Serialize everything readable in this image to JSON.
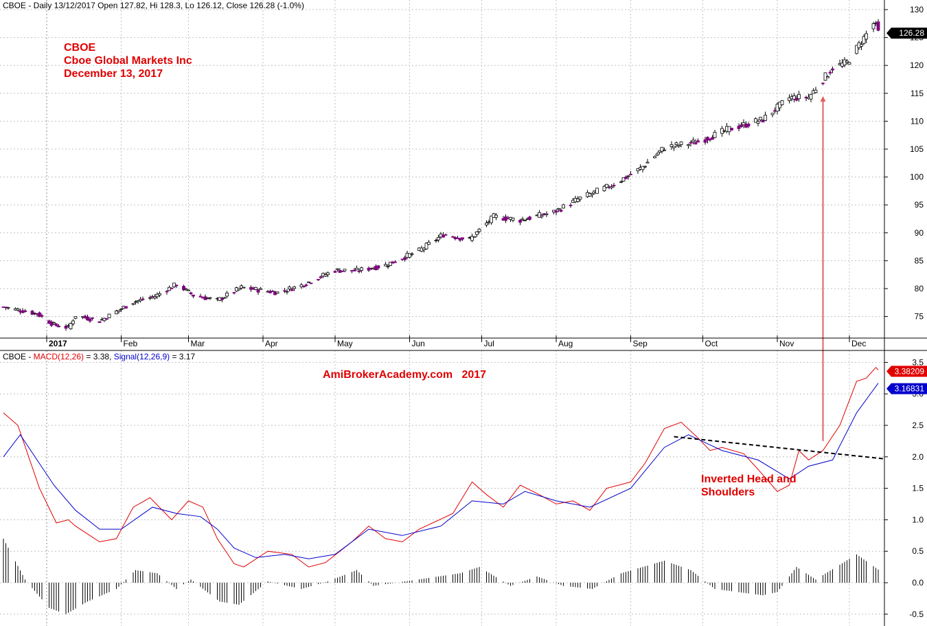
{
  "price_panel": {
    "header": "CBOE - Daily 13/12/2017 Open 127.82, Hi 128.3, Lo 126.12, Close 126.28 (-1.0%)",
    "annotation": {
      "line1": "CBOE",
      "line2": "Cboe Global Markets Inc",
      "line3": "December 13, 2017"
    },
    "last_price_badge": "126.28"
  },
  "macd_panel": {
    "header_prefix": "CBOE - ",
    "macd_label": "MACD(12,26)",
    "macd_eq": " = 3.38, ",
    "signal_label": "Signal(12,26,9)",
    "signal_eq": " = 3.17",
    "watermark": "AmiBrokerAcademy.com   2017",
    "pattern_label_1": "Inverted Head and",
    "pattern_label_2": "Shoulders",
    "macd_badge": "3.38209",
    "signal_badge": "3.16831"
  },
  "colors": {
    "up_candle": "#ffffff",
    "down_candle": "#800080",
    "macd_line": "#e00000",
    "signal_line": "#0000cc",
    "histogram": "#000000",
    "annotation_text": "#e00000",
    "arrow": "#e06060",
    "grid": "#c0c0c0",
    "badge_price": "#000000",
    "badge_macd": "#e00000",
    "badge_signal": "#0000cc"
  },
  "chart_data": [
    {
      "type": "candlestick",
      "title": "CBOE - Daily 13/12/2017 Open 127.82, Hi 128.3, Lo 126.12, Close 126.28 (-1.0%)",
      "x_tick_labels": [
        "2017",
        "Feb",
        "Mar",
        "Apr",
        "May",
        "Jun",
        "Jul",
        "Aug",
        "Sep",
        "Oct",
        "Nov",
        "Dec"
      ],
      "y_tick_labels": [
        "75",
        "80",
        "85",
        "90",
        "95",
        "100",
        "105",
        "110",
        "115",
        "120",
        "125",
        "130"
      ],
      "ylim": [
        71,
        131
      ],
      "grid": true,
      "close_keypoints": [
        [
          "2016-12-14",
          76.7
        ],
        [
          "2016-12-28",
          75.5
        ],
        [
          "2017-01-04",
          73.5
        ],
        [
          "2017-01-10",
          73.0
        ],
        [
          "2017-01-13",
          75.2
        ],
        [
          "2017-01-23",
          74.2
        ],
        [
          "2017-02-06",
          77.6
        ],
        [
          "2017-02-15",
          78.6
        ],
        [
          "2017-02-24",
          80.8
        ],
        [
          "2017-03-03",
          78.8
        ],
        [
          "2017-03-13",
          77.9
        ],
        [
          "2017-03-23",
          80.2
        ],
        [
          "2017-04-07",
          79.3
        ],
        [
          "2017-04-17",
          80.6
        ],
        [
          "2017-05-01",
          83.3
        ],
        [
          "2017-05-10",
          83.2
        ],
        [
          "2017-05-22",
          84.2
        ],
        [
          "2017-06-05",
          86.8
        ],
        [
          "2017-06-15",
          89.7
        ],
        [
          "2017-06-26",
          88.8
        ],
        [
          "2017-07-06",
          92.9
        ],
        [
          "2017-07-17",
          92.3
        ],
        [
          "2017-07-31",
          93.7
        ],
        [
          "2017-08-10",
          96.0
        ],
        [
          "2017-08-25",
          98.7
        ],
        [
          "2017-09-05",
          101.5
        ],
        [
          "2017-09-15",
          105.3
        ],
        [
          "2017-09-29",
          106.3
        ],
        [
          "2017-10-12",
          108.6
        ],
        [
          "2017-10-26",
          110.3
        ],
        [
          "2017-11-06",
          114.2
        ],
        [
          "2017-11-14",
          114.3
        ],
        [
          "2017-11-24",
          119.6
        ],
        [
          "2017-11-30",
          120.5
        ],
        [
          "2017-12-06",
          124.3
        ],
        [
          "2017-12-11",
          127.5
        ],
        [
          "2017-12-13",
          126.28
        ]
      ],
      "last_bar": {
        "date": "2017-12-13",
        "open": 127.82,
        "high": 128.3,
        "low": 126.12,
        "close": 126.28
      }
    },
    {
      "type": "line",
      "title": "CBOE - MACD(12,26) = 3.38, Signal(12,26,9) = 3.17",
      "x_tick_labels": [
        "2017",
        "Feb",
        "Mar",
        "Apr",
        "May",
        "Jun",
        "Jul",
        "Aug",
        "Sep",
        "Oct",
        "Nov",
        "Dec"
      ],
      "y_tick_labels": [
        "-0.5",
        "0.0",
        "0.5",
        "1.0",
        "1.5",
        "2.0",
        "2.5",
        "3.0",
        "3.5"
      ],
      "ylim": [
        -0.7,
        3.7
      ],
      "series": [
        {
          "name": "MACD(12,26)",
          "points": [
            [
              "2016-12-14",
              2.7
            ],
            [
              "2016-12-20",
              2.5
            ],
            [
              "2016-12-29",
              1.5
            ],
            [
              "2017-01-05",
              0.95
            ],
            [
              "2017-01-10",
              1.0
            ],
            [
              "2017-01-13",
              0.9
            ],
            [
              "2017-01-23",
              0.65
            ],
            [
              "2017-01-30",
              0.7
            ],
            [
              "2017-02-06",
              1.2
            ],
            [
              "2017-02-13",
              1.35
            ],
            [
              "2017-02-22",
              1.0
            ],
            [
              "2017-03-01",
              1.3
            ],
            [
              "2017-03-07",
              1.2
            ],
            [
              "2017-03-13",
              0.7
            ],
            [
              "2017-03-20",
              0.3
            ],
            [
              "2017-03-24",
              0.25
            ],
            [
              "2017-04-03",
              0.5
            ],
            [
              "2017-04-13",
              0.45
            ],
            [
              "2017-04-20",
              0.25
            ],
            [
              "2017-04-27",
              0.32
            ],
            [
              "2017-05-08",
              0.65
            ],
            [
              "2017-05-15",
              0.9
            ],
            [
              "2017-05-22",
              0.7
            ],
            [
              "2017-05-29",
              0.65
            ],
            [
              "2017-06-05",
              0.85
            ],
            [
              "2017-06-19",
              1.1
            ],
            [
              "2017-06-27",
              1.6
            ],
            [
              "2017-07-03",
              1.4
            ],
            [
              "2017-07-10",
              1.2
            ],
            [
              "2017-07-17",
              1.55
            ],
            [
              "2017-07-25",
              1.4
            ],
            [
              "2017-08-01",
              1.25
            ],
            [
              "2017-08-08",
              1.3
            ],
            [
              "2017-08-15",
              1.15
            ],
            [
              "2017-08-22",
              1.5
            ],
            [
              "2017-09-01",
              1.6
            ],
            [
              "2017-09-07",
              1.9
            ],
            [
              "2017-09-15",
              2.45
            ],
            [
              "2017-09-22",
              2.55
            ],
            [
              "2017-09-29",
              2.3
            ],
            [
              "2017-10-04",
              2.1
            ],
            [
              "2017-10-09",
              2.15
            ],
            [
              "2017-10-18",
              2.05
            ],
            [
              "2017-10-24",
              1.8
            ],
            [
              "2017-11-01",
              1.45
            ],
            [
              "2017-11-06",
              1.55
            ],
            [
              "2017-11-10",
              2.1
            ],
            [
              "2017-11-14",
              1.95
            ],
            [
              "2017-11-20",
              2.1
            ],
            [
              "2017-11-27",
              2.5
            ],
            [
              "2017-12-04",
              3.2
            ],
            [
              "2017-12-08",
              3.25
            ],
            [
              "2017-12-12",
              3.42
            ],
            [
              "2017-12-13",
              3.38
            ]
          ]
        },
        {
          "name": "Signal(12,26,9)",
          "points": [
            [
              "2016-12-14",
              2.0
            ],
            [
              "2016-12-21",
              2.35
            ],
            [
              "2017-01-04",
              1.55
            ],
            [
              "2017-01-13",
              1.15
            ],
            [
              "2017-01-23",
              0.85
            ],
            [
              "2017-02-01",
              0.85
            ],
            [
              "2017-02-14",
              1.2
            ],
            [
              "2017-02-24",
              1.1
            ],
            [
              "2017-03-06",
              1.05
            ],
            [
              "2017-03-13",
              0.85
            ],
            [
              "2017-03-20",
              0.55
            ],
            [
              "2017-03-29",
              0.4
            ],
            [
              "2017-04-10",
              0.45
            ],
            [
              "2017-04-20",
              0.38
            ],
            [
              "2017-05-01",
              0.45
            ],
            [
              "2017-05-15",
              0.85
            ],
            [
              "2017-05-29",
              0.75
            ],
            [
              "2017-06-14",
              0.9
            ],
            [
              "2017-06-27",
              1.3
            ],
            [
              "2017-07-10",
              1.25
            ],
            [
              "2017-07-19",
              1.45
            ],
            [
              "2017-08-01",
              1.3
            ],
            [
              "2017-08-15",
              1.2
            ],
            [
              "2017-09-01",
              1.5
            ],
            [
              "2017-09-15",
              2.15
            ],
            [
              "2017-09-25",
              2.35
            ],
            [
              "2017-10-09",
              2.1
            ],
            [
              "2017-10-24",
              1.95
            ],
            [
              "2017-11-06",
              1.65
            ],
            [
              "2017-11-14",
              1.85
            ],
            [
              "2017-11-24",
              1.95
            ],
            [
              "2017-12-04",
              2.7
            ],
            [
              "2017-12-13",
              3.17
            ]
          ]
        },
        {
          "name": "Histogram",
          "points": [
            [
              "2016-12-14",
              0.7
            ],
            [
              "2016-12-23",
              0.05
            ],
            [
              "2017-01-02",
              -0.4
            ],
            [
              "2017-01-09",
              -0.5
            ],
            [
              "2017-01-18",
              -0.3
            ],
            [
              "2017-01-30",
              -0.1
            ],
            [
              "2017-02-07",
              0.2
            ],
            [
              "2017-02-16",
              0.15
            ],
            [
              "2017-02-24",
              -0.1
            ],
            [
              "2017-03-02",
              0.05
            ],
            [
              "2017-03-14",
              -0.3
            ],
            [
              "2017-03-22",
              -0.35
            ],
            [
              "2017-04-03",
              0.02
            ],
            [
              "2017-04-17",
              -0.1
            ],
            [
              "2017-04-28",
              0.02
            ],
            [
              "2017-05-10",
              0.2
            ],
            [
              "2017-05-17",
              -0.05
            ],
            [
              "2017-05-30",
              0.02
            ],
            [
              "2017-06-22",
              0.15
            ],
            [
              "2017-06-30",
              0.25
            ],
            [
              "2017-07-13",
              -0.05
            ],
            [
              "2017-07-24",
              0.1
            ],
            [
              "2017-08-04",
              -0.05
            ],
            [
              "2017-08-16",
              -0.1
            ],
            [
              "2017-08-28",
              0.15
            ],
            [
              "2017-09-15",
              0.35
            ],
            [
              "2017-09-26",
              0.2
            ],
            [
              "2017-10-06",
              -0.1
            ],
            [
              "2017-10-26",
              -0.2
            ],
            [
              "2017-11-01",
              -0.15
            ],
            [
              "2017-11-09",
              0.25
            ],
            [
              "2017-11-17",
              0.05
            ],
            [
              "2017-12-04",
              0.45
            ],
            [
              "2017-12-13",
              0.21
            ]
          ]
        }
      ],
      "annotations": [
        {
          "text": "Inverted Head and Shoulders",
          "kind": "dashed neckline",
          "from": [
            "2017-09-19",
            2.32
          ],
          "to": [
            "2017-12-15",
            1.97
          ]
        },
        {
          "kind": "vertical arrow",
          "at": "2017-11-20",
          "from_value": 2.25,
          "to_price": 114.5
        }
      ]
    }
  ]
}
